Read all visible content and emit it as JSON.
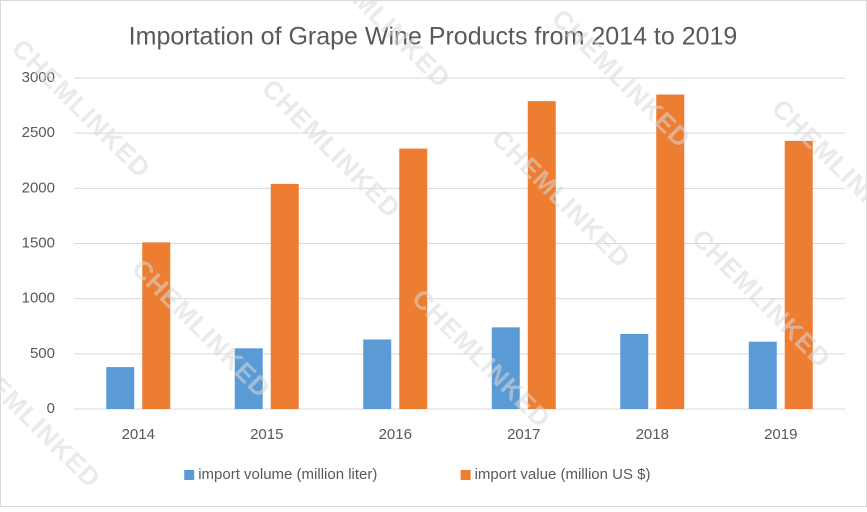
{
  "chart_data": {
    "type": "bar",
    "title": "Importation of Grape Wine Products from 2014 to 2019",
    "categories": [
      "2014",
      "2015",
      "2016",
      "2017",
      "2018",
      "2019"
    ],
    "series": [
      {
        "name": "import volume (million liter)",
        "color": "#5b9bd5",
        "values": [
          380,
          550,
          630,
          740,
          680,
          610
        ]
      },
      {
        "name": "import value (million US $)",
        "color": "#ed7d31",
        "values": [
          1510,
          2040,
          2360,
          2790,
          2850,
          2430
        ]
      }
    ],
    "ylim": [
      0,
      3000
    ],
    "yticks": [
      0,
      500,
      1000,
      1500,
      2000,
      2500,
      3000
    ],
    "grid": true,
    "legend": "bottom",
    "watermark": "CHEMLINKED"
  }
}
